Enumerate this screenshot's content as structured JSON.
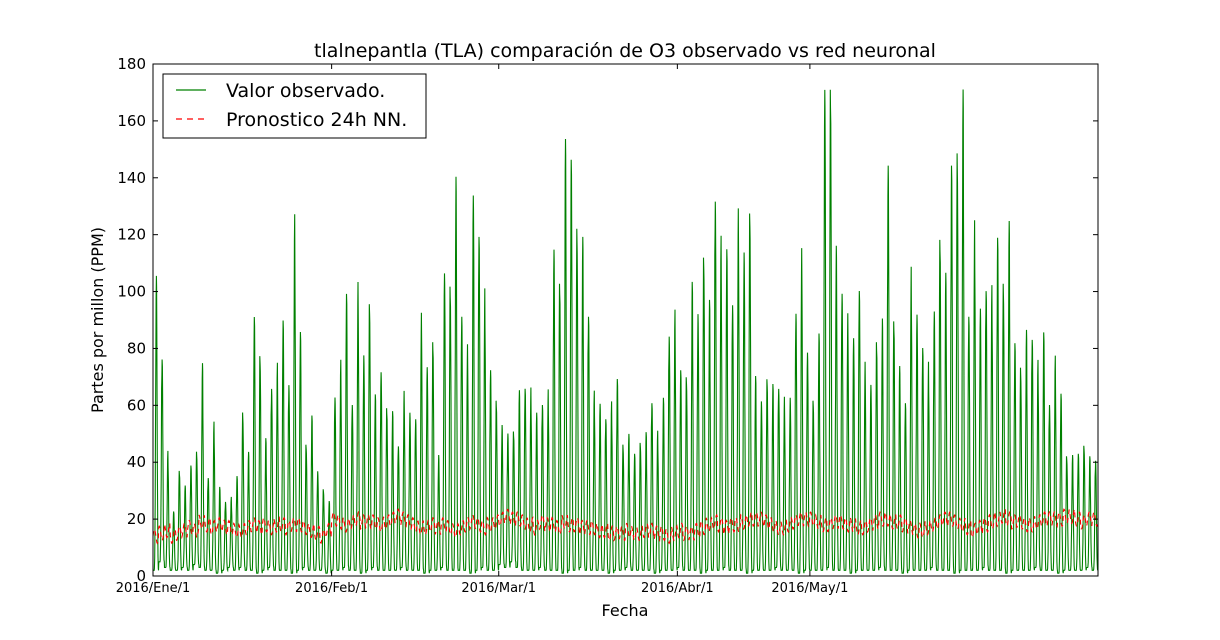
{
  "chart_data": {
    "type": "line",
    "title": "tlalnepantla (TLA) comparación de O3 observado vs red neuronal",
    "xlabel": "Fecha",
    "ylabel": "Partes por millon (PPM)",
    "ylim": [
      0,
      180
    ],
    "yticks": [
      0,
      20,
      40,
      60,
      80,
      100,
      120,
      140,
      160,
      180
    ],
    "x_unit": "days since 2016-01-01",
    "xlim": [
      0,
      164
    ],
    "xticks": [
      {
        "value": 0,
        "label": "2016/Ene/1"
      },
      {
        "value": 31,
        "label": "2016/Feb/1"
      },
      {
        "value": 60,
        "label": "2016/Mar/1"
      },
      {
        "value": 91,
        "label": "2016/Abr/1"
      },
      {
        "value": 114,
        "label": "2016/May/1"
      }
    ],
    "grid": false,
    "legend_position": "top-left",
    "series": [
      {
        "name": "Valor observado.",
        "style": "solid",
        "color": "#008000",
        "daily_min": [
          2,
          5,
          3,
          2,
          2,
          3,
          2,
          4,
          3,
          2,
          2,
          1,
          2,
          3,
          2,
          3,
          2,
          2,
          1,
          2,
          3,
          2,
          2,
          2,
          1,
          2,
          3,
          2,
          2,
          2,
          1,
          2,
          2,
          3,
          2,
          2,
          1,
          2,
          3,
          2,
          2,
          2,
          2,
          3,
          2,
          2,
          2,
          1,
          2,
          2,
          3,
          2,
          2,
          2,
          2,
          1,
          2,
          3,
          2,
          2,
          4,
          3,
          5,
          3,
          2,
          2,
          2,
          3,
          2,
          2,
          2,
          1,
          2,
          2,
          3,
          2,
          2,
          2,
          2,
          1,
          2,
          2,
          3,
          2,
          2,
          2,
          2,
          1,
          2,
          2,
          2,
          3,
          2,
          2,
          2,
          1,
          2,
          2,
          2,
          3,
          2,
          2,
          2,
          1,
          2,
          2,
          2,
          2,
          3,
          2,
          2,
          2,
          1,
          2,
          2,
          2,
          2,
          3,
          2,
          2,
          2,
          1,
          2,
          2,
          2,
          2,
          3,
          2,
          2,
          2,
          1,
          2,
          2,
          2,
          2,
          3,
          2,
          2,
          2,
          1,
          2,
          2,
          2,
          2,
          3,
          2,
          2,
          2,
          1,
          2,
          2,
          2,
          2,
          3,
          2,
          2,
          2,
          1,
          2,
          2,
          2,
          2,
          3,
          2
        ],
        "daily_max": [
          101,
          76,
          41,
          22,
          36,
          30,
          38,
          43,
          71,
          34,
          50,
          30,
          26,
          26,
          34,
          56,
          41,
          89,
          76,
          46,
          65,
          69,
          86,
          67,
          118,
          83,
          45,
          53,
          36,
          30,
          25,
          62,
          70,
          95,
          60,
          96,
          75,
          93,
          60,
          70,
          58,
          55,
          45,
          60,
          55,
          55,
          86,
          71,
          80,
          40,
          104,
          100,
          133,
          90,
          75,
          128,
          119,
          94,
          70,
          60,
          50,
          49,
          50,
          62,
          65,
          61,
          55,
          60,
          61,
          111,
          100,
          144,
          143,
          120,
          113,
          90,
          60,
          58,
          55,
          57,
          67,
          45,
          47,
          42,
          46,
          48,
          60,
          47,
          60,
          84,
          87,
          70,
          68,
          97,
          90,
          110,
          92,
          130,
          110,
          110,
          95,
          120,
          110,
          124,
          66,
          60,
          68,
          64,
          65,
          58,
          60,
          92,
          107,
          76,
          60,
          80,
          167,
          168,
          110,
          98,
          85,
          80,
          100,
          70,
          65,
          80,
          85,
          141,
          88,
          70,
          60,
          100,
          88,
          80,
          70,
          90,
          115,
          100,
          141,
          146,
          162,
          90,
          115,
          90,
          100,
          95,
          115,
          100,
          117,
          80,
          72,
          82,
          82,
          70,
          82,
          60,
          72,
          62,
          41,
          40,
          42,
          45,
          40,
          40
        ],
        "note": "hourly values approximated from daily min/max with a diurnal profile"
      },
      {
        "name": "Pronostico 24h NN.",
        "style": "dashed",
        "color": "#ff0000",
        "daily_mean": [
          14,
          15,
          16,
          14,
          15,
          16,
          17,
          16,
          19,
          18,
          17,
          18,
          17,
          17,
          16,
          16,
          17,
          18,
          17,
          18,
          17,
          18,
          18,
          17,
          18,
          18,
          17,
          16,
          15,
          14,
          16,
          20,
          19,
          18,
          19,
          20,
          19,
          19,
          19,
          18,
          19,
          20,
          21,
          20,
          19,
          18,
          17,
          17,
          18,
          17,
          18,
          17,
          16,
          17,
          18,
          19,
          18,
          17,
          18,
          19,
          20,
          21,
          20,
          20,
          19,
          18,
          17,
          19,
          18,
          18,
          17,
          19,
          18,
          18,
          17,
          17,
          17,
          16,
          16,
          15,
          15,
          15,
          16,
          15,
          15,
          16,
          16,
          15,
          15,
          14,
          15,
          16,
          15,
          15,
          16,
          17,
          18,
          19,
          18,
          17,
          18,
          18,
          19,
          20,
          20,
          20,
          19,
          18,
          17,
          17,
          18,
          19,
          20,
          20,
          20,
          19,
          18,
          18,
          19,
          19,
          18,
          18,
          17,
          17,
          18,
          19,
          20,
          20,
          19,
          19,
          18,
          17,
          16,
          16,
          17,
          18,
          19,
          20,
          20,
          19,
          18,
          17,
          16,
          17,
          18,
          19,
          20,
          21,
          20,
          19,
          19,
          18,
          18,
          19,
          20,
          20,
          20,
          20,
          21,
          21,
          20,
          19,
          20,
          20
        ]
      }
    ]
  }
}
